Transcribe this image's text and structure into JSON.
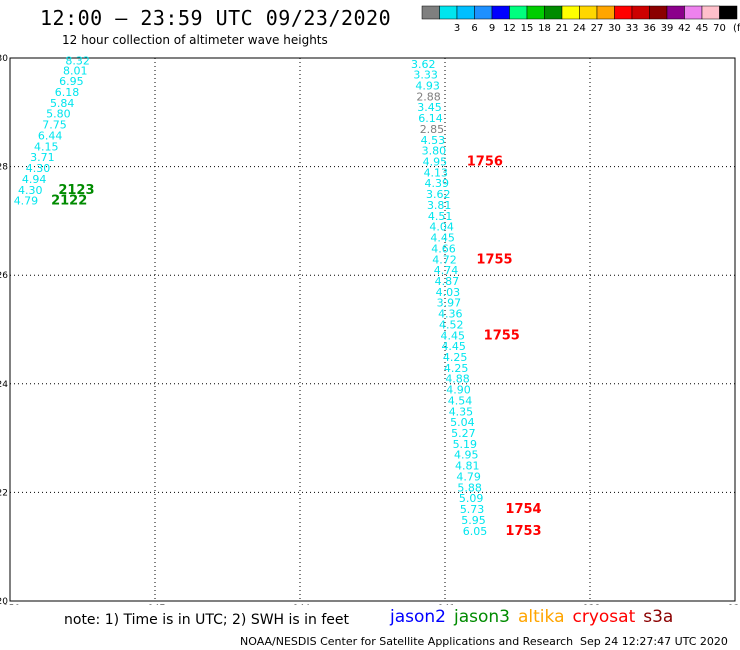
{
  "header": {
    "title": "12:00 – 23:59 UTC 09/23/2020",
    "subtitle": "12 hour collection of altimeter wave heights"
  },
  "legend": {
    "unit": "(ft)",
    "bins": [
      {
        "label": "",
        "color": "#7f7f7f"
      },
      {
        "label": "3",
        "color": "#00e5ee"
      },
      {
        "label": "6",
        "color": "#00bfff"
      },
      {
        "label": "9",
        "color": "#1e90ff"
      },
      {
        "label": "12",
        "color": "#0000ff"
      },
      {
        "label": "15",
        "color": "#00ff7f"
      },
      {
        "label": "18",
        "color": "#00cd00"
      },
      {
        "label": "21",
        "color": "#008b00"
      },
      {
        "label": "24",
        "color": "#ffff00"
      },
      {
        "label": "27",
        "color": "#ffd700"
      },
      {
        "label": "30",
        "color": "#ffa500"
      },
      {
        "label": "33",
        "color": "#ff0000"
      },
      {
        "label": "36",
        "color": "#cd0000"
      },
      {
        "label": "39",
        "color": "#8b0000"
      },
      {
        "label": "42",
        "color": "#8b008b"
      },
      {
        "label": "45",
        "color": "#ee82ee"
      },
      {
        "label": "70",
        "color": "#ffc0cb"
      },
      {
        "label": "",
        "color": "#000000"
      }
    ]
  },
  "map": {
    "lon_range": [
      -150,
      -135
    ],
    "lat_range": [
      20,
      30
    ],
    "x_ticks": [
      "-150",
      "-147",
      "-144",
      "-141",
      "-138",
      "-135"
    ],
    "x_tick_values": [
      -150,
      -147,
      -144,
      -141,
      -138,
      -135
    ],
    "y_ticks": [
      "20",
      "22",
      "24",
      "26",
      "28",
      "30"
    ],
    "y_tick_values": [
      20,
      22,
      24,
      26,
      28,
      30
    ],
    "grid": "dotted",
    "tracks": [
      {
        "name": "track-west",
        "points": [
          {
            "lon": -148.6,
            "lat": 29.88,
            "v": "8.32",
            "c": "#00e5ee"
          },
          {
            "lon": -148.65,
            "lat": 29.7,
            "v": "8.01",
            "c": "#00e5ee"
          },
          {
            "lon": -148.73,
            "lat": 29.5,
            "v": "6.95",
            "c": "#00e5ee"
          },
          {
            "lon": -148.82,
            "lat": 29.3,
            "v": "6.18",
            "c": "#00e5ee"
          },
          {
            "lon": -148.92,
            "lat": 29.1,
            "v": "5.84",
            "c": "#00e5ee"
          },
          {
            "lon": -149.0,
            "lat": 28.9,
            "v": "5.80",
            "c": "#00e5ee"
          },
          {
            "lon": -149.08,
            "lat": 28.7,
            "v": "7.75",
            "c": "#00e5ee"
          },
          {
            "lon": -149.17,
            "lat": 28.5,
            "v": "6.44",
            "c": "#00e5ee"
          },
          {
            "lon": -149.25,
            "lat": 28.3,
            "v": "4.15",
            "c": "#00e5ee"
          },
          {
            "lon": -149.33,
            "lat": 28.1,
            "v": "3.71",
            "c": "#00e5ee"
          },
          {
            "lon": -149.42,
            "lat": 27.9,
            "v": "4.30",
            "c": "#00e5ee"
          },
          {
            "lon": -149.5,
            "lat": 27.7,
            "v": "4.94",
            "c": "#00e5ee"
          },
          {
            "lon": -149.58,
            "lat": 27.5,
            "v": "4.30",
            "c": "#00e5ee"
          },
          {
            "lon": -149.67,
            "lat": 27.3,
            "v": "4.79",
            "c": "#00e5ee"
          }
        ]
      },
      {
        "name": "track-east",
        "points": [
          {
            "lon": -141.45,
            "lat": 29.82,
            "v": "3.62",
            "c": "#00e5ee"
          },
          {
            "lon": -141.4,
            "lat": 29.62,
            "v": "3.33",
            "c": "#00e5ee"
          },
          {
            "lon": -141.36,
            "lat": 29.42,
            "v": "4.93",
            "c": "#00e5ee"
          },
          {
            "lon": -141.34,
            "lat": 29.22,
            "v": "2.88",
            "c": "#7f7f7f"
          },
          {
            "lon": -141.32,
            "lat": 29.02,
            "v": "3.45",
            "c": "#00e5ee"
          },
          {
            "lon": -141.3,
            "lat": 28.82,
            "v": "6.14",
            "c": "#00e5ee"
          },
          {
            "lon": -141.27,
            "lat": 28.62,
            "v": "2.85",
            "c": "#7f7f7f"
          },
          {
            "lon": -141.25,
            "lat": 28.42,
            "v": "4.53",
            "c": "#00e5ee"
          },
          {
            "lon": -141.23,
            "lat": 28.22,
            "v": "3.80",
            "c": "#00e5ee"
          },
          {
            "lon": -141.21,
            "lat": 28.02,
            "v": "4.95",
            "c": "#00e5ee"
          },
          {
            "lon": -141.19,
            "lat": 27.82,
            "v": "4.13",
            "c": "#00e5ee"
          },
          {
            "lon": -141.17,
            "lat": 27.62,
            "v": "4.39",
            "c": "#00e5ee"
          },
          {
            "lon": -141.14,
            "lat": 27.42,
            "v": "3.62",
            "c": "#00e5ee"
          },
          {
            "lon": -141.12,
            "lat": 27.22,
            "v": "3.81",
            "c": "#00e5ee"
          },
          {
            "lon": -141.1,
            "lat": 27.02,
            "v": "4.51",
            "c": "#00e5ee"
          },
          {
            "lon": -141.07,
            "lat": 26.82,
            "v": "4.04",
            "c": "#00e5ee"
          },
          {
            "lon": -141.05,
            "lat": 26.62,
            "v": "4.45",
            "c": "#00e5ee"
          },
          {
            "lon": -141.03,
            "lat": 26.42,
            "v": "4.66",
            "c": "#00e5ee"
          },
          {
            "lon": -141.01,
            "lat": 26.22,
            "v": "4.72",
            "c": "#00e5ee"
          },
          {
            "lon": -140.98,
            "lat": 26.02,
            "v": "4.74",
            "c": "#00e5ee"
          },
          {
            "lon": -140.96,
            "lat": 25.82,
            "v": "4.87",
            "c": "#00e5ee"
          },
          {
            "lon": -140.94,
            "lat": 25.62,
            "v": "4.03",
            "c": "#00e5ee"
          },
          {
            "lon": -140.92,
            "lat": 25.42,
            "v": "3.97",
            "c": "#00e5ee"
          },
          {
            "lon": -140.89,
            "lat": 25.22,
            "v": "4.36",
            "c": "#00e5ee"
          },
          {
            "lon": -140.87,
            "lat": 25.02,
            "v": "4.52",
            "c": "#00e5ee"
          },
          {
            "lon": -140.84,
            "lat": 24.82,
            "v": "4.45",
            "c": "#00e5ee"
          },
          {
            "lon": -140.82,
            "lat": 24.62,
            "v": "4.45",
            "c": "#00e5ee"
          },
          {
            "lon": -140.79,
            "lat": 24.42,
            "v": "4.25",
            "c": "#00e5ee"
          },
          {
            "lon": -140.77,
            "lat": 24.22,
            "v": "4.25",
            "c": "#00e5ee"
          },
          {
            "lon": -140.74,
            "lat": 24.02,
            "v": "4.88",
            "c": "#00e5ee"
          },
          {
            "lon": -140.72,
            "lat": 23.82,
            "v": "4.90",
            "c": "#00e5ee"
          },
          {
            "lon": -140.69,
            "lat": 23.62,
            "v": "4.54",
            "c": "#00e5ee"
          },
          {
            "lon": -140.67,
            "lat": 23.42,
            "v": "4.35",
            "c": "#00e5ee"
          },
          {
            "lon": -140.64,
            "lat": 23.22,
            "v": "5.04",
            "c": "#00e5ee"
          },
          {
            "lon": -140.62,
            "lat": 23.02,
            "v": "5.27",
            "c": "#00e5ee"
          },
          {
            "lon": -140.59,
            "lat": 22.82,
            "v": "5.19",
            "c": "#00e5ee"
          },
          {
            "lon": -140.56,
            "lat": 22.62,
            "v": "4.95",
            "c": "#00e5ee"
          },
          {
            "lon": -140.54,
            "lat": 22.42,
            "v": "4.81",
            "c": "#00e5ee"
          },
          {
            "lon": -140.51,
            "lat": 22.22,
            "v": "4.79",
            "c": "#00e5ee"
          },
          {
            "lon": -140.49,
            "lat": 22.02,
            "v": "5.88",
            "c": "#00e5ee"
          },
          {
            "lon": -140.46,
            "lat": 21.82,
            "v": "5.09",
            "c": "#00e5ee"
          },
          {
            "lon": -140.44,
            "lat": 21.62,
            "v": "5.73",
            "c": "#00e5ee"
          },
          {
            "lon": -140.41,
            "lat": 21.42,
            "v": "5.95",
            "c": "#00e5ee"
          },
          {
            "lon": -140.38,
            "lat": 21.22,
            "v": "6.05",
            "c": "#00e5ee"
          }
        ]
      }
    ],
    "time_labels": [
      {
        "lon": -149.0,
        "lat": 27.5,
        "text": "2123",
        "color": "#008b00"
      },
      {
        "lon": -149.15,
        "lat": 27.3,
        "text": "2122",
        "color": "#008b00"
      },
      {
        "lon": -140.55,
        "lat": 28.02,
        "text": "1756",
        "color": "#ff0000"
      },
      {
        "lon": -140.35,
        "lat": 26.22,
        "text": "1755",
        "color": "#ff0000"
      },
      {
        "lon": -140.2,
        "lat": 24.82,
        "text": "1755",
        "color": "#ff0000"
      },
      {
        "lon": -139.75,
        "lat": 21.62,
        "text": "1754",
        "color": "#ff0000"
      },
      {
        "lon": -139.75,
        "lat": 21.22,
        "text": "1753",
        "color": "#ff0000"
      }
    ]
  },
  "footer": {
    "note": "note: 1) Time is in UTC; 2) SWH is in feet",
    "missions": [
      {
        "name": "jason2",
        "color": "#0000ff"
      },
      {
        "name": "jason3",
        "color": "#008b00"
      },
      {
        "name": "altika",
        "color": "#ffa500"
      },
      {
        "name": "cryosat",
        "color": "#ff0000"
      },
      {
        "name": "s3a",
        "color": "#8b0000"
      }
    ],
    "credit": "NOAA/NESDIS Center for Satellite Applications and Research",
    "timestamp": "Sep 24 12:27:47 UTC 2020"
  }
}
